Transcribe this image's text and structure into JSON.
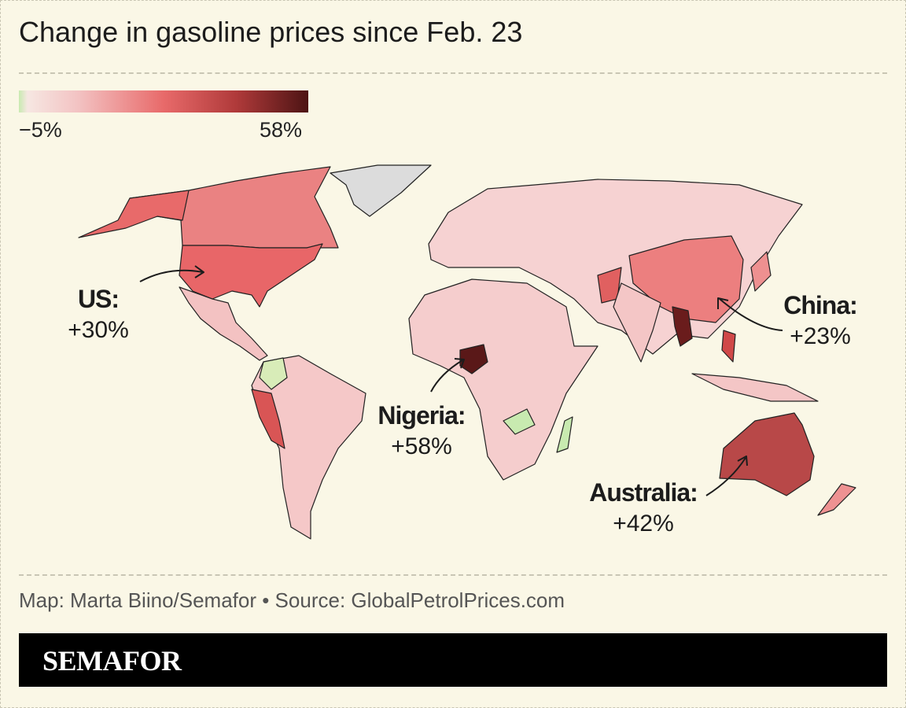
{
  "title": "Change in gasoline prices since Feb. 23",
  "legend": {
    "min_label": "−5%",
    "max_label": "58%"
  },
  "annotations": [
    {
      "label": "US:",
      "value": "+30%"
    },
    {
      "label": "China:",
      "value": "+23%"
    },
    {
      "label": "Nigeria:",
      "value": "+58%"
    },
    {
      "label": "Australia:",
      "value": "+42%"
    }
  ],
  "source": "Map: Marta Biino/Semafor • Source: GlobalPetrolPrices.com",
  "brand": "SEMAFOR"
}
